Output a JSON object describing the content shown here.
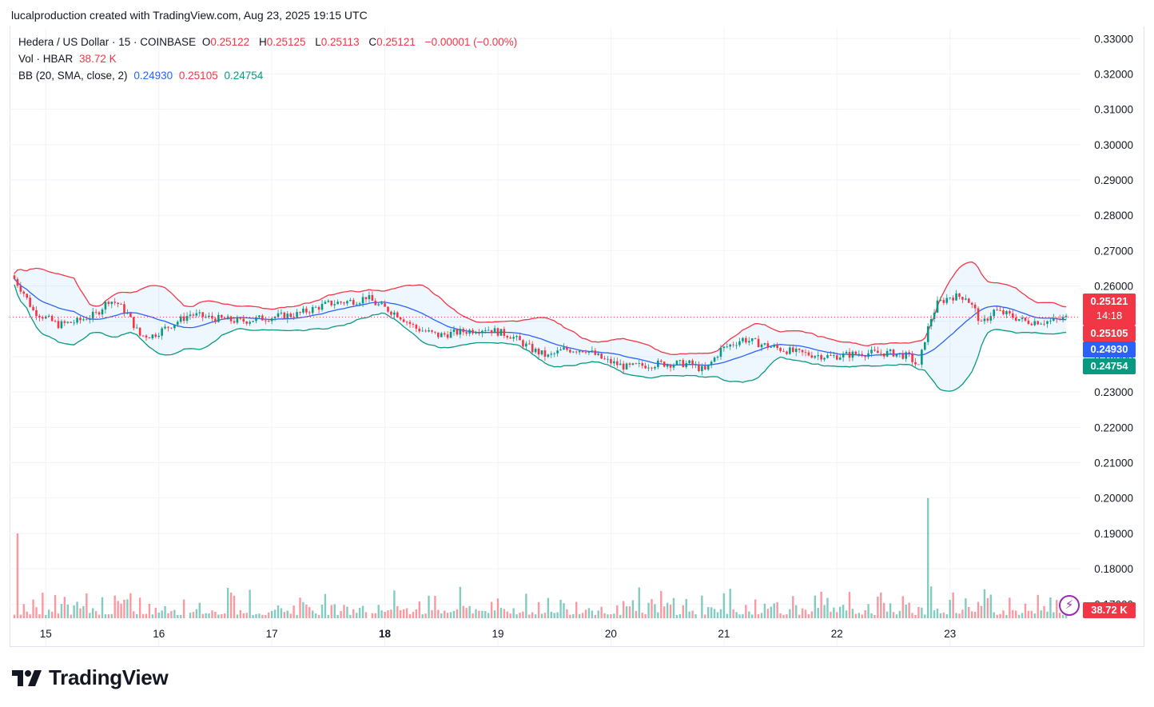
{
  "header": {
    "credit": "lucalproduction created with TradingView.com, Aug 23, 2025 19:15 UTC"
  },
  "legend": {
    "symbol": "Hedera / US Dollar · 15 · COINBASE",
    "o_label": "O",
    "o_value": "0.25122",
    "h_label": "H",
    "h_value": "0.25125",
    "l_label": "L",
    "l_value": "0.25113",
    "c_label": "C",
    "c_value": "0.25121",
    "change": "−0.00001 (−0.00%)",
    "vol_label": "Vol · HBAR",
    "vol_value": "38.72 K",
    "bb_label": "BB (20, SMA, close, 2)",
    "bb_basis": "0.24930",
    "bb_upper": "0.25105",
    "bb_lower": "0.24754"
  },
  "price_tags": {
    "last_price": "0.25121",
    "countdown": "14:18",
    "bb_upper": "0.25105",
    "bb_basis": "0.24930",
    "bb_lower": "0.24754",
    "volume": "38.72 K"
  },
  "brand": {
    "name": "TradingView"
  },
  "colors": {
    "up": "#089981",
    "down": "#f23645",
    "basis": "#2962ff",
    "upper": "#f23645",
    "lower": "#089981",
    "fill": "rgba(33,150,243,0.08)",
    "grid": "#f0f3fa"
  },
  "chart_data": {
    "type": "candlestick",
    "y_axis_labels": [
      "0.33000",
      "0.32000",
      "0.31000",
      "0.30000",
      "0.29000",
      "0.28000",
      "0.27000",
      "0.26000",
      "0.25000",
      "0.24000",
      "0.23000",
      "0.22000",
      "0.21000",
      "0.20000",
      "0.19000",
      "0.18000",
      "0.17000"
    ],
    "ylim": [
      0.166,
      0.333
    ],
    "x_axis_labels": [
      "15",
      "16",
      "17",
      "18",
      "19",
      "20",
      "21",
      "22",
      "23"
    ],
    "x_axis_bold": [
      "18"
    ],
    "price_path": [
      [
        0,
        0.262
      ],
      [
        3,
        0.258
      ],
      [
        6,
        0.253
      ],
      [
        10,
        0.251
      ],
      [
        14,
        0.249
      ],
      [
        20,
        0.25
      ],
      [
        26,
        0.252
      ],
      [
        30,
        0.256
      ],
      [
        33,
        0.255
      ],
      [
        36,
        0.252
      ],
      [
        40,
        0.246
      ],
      [
        44,
        0.246
      ],
      [
        50,
        0.249
      ],
      [
        56,
        0.252
      ],
      [
        62,
        0.251
      ],
      [
        72,
        0.25
      ],
      [
        80,
        0.251
      ],
      [
        90,
        0.252
      ],
      [
        100,
        0.255
      ],
      [
        110,
        0.256
      ],
      [
        112,
        0.257
      ],
      [
        115,
        0.255
      ],
      [
        122,
        0.252
      ],
      [
        128,
        0.248
      ],
      [
        135,
        0.246
      ],
      [
        142,
        0.247
      ],
      [
        150,
        0.248
      ],
      [
        158,
        0.246
      ],
      [
        165,
        0.242
      ],
      [
        170,
        0.24
      ],
      [
        175,
        0.242
      ],
      [
        182,
        0.242
      ],
      [
        188,
        0.239
      ],
      [
        195,
        0.237
      ],
      [
        205,
        0.238
      ],
      [
        215,
        0.238
      ],
      [
        220,
        0.236
      ],
      [
        225,
        0.242
      ],
      [
        232,
        0.245
      ],
      [
        240,
        0.243
      ],
      [
        250,
        0.241
      ],
      [
        260,
        0.24
      ],
      [
        270,
        0.241
      ],
      [
        280,
        0.241
      ],
      [
        285,
        0.24
      ],
      [
        288,
        0.237
      ],
      [
        290,
        0.245
      ],
      [
        292,
        0.251
      ],
      [
        294,
        0.255
      ],
      [
        298,
        0.257
      ],
      [
        303,
        0.257
      ],
      [
        306,
        0.253
      ],
      [
        308,
        0.249
      ],
      [
        312,
        0.253
      ],
      [
        316,
        0.252
      ],
      [
        322,
        0.25
      ],
      [
        330,
        0.25
      ],
      [
        335,
        0.251
      ]
    ],
    "volume_spikes": [
      [
        1,
        0.19
      ],
      [
        3,
        0.17
      ],
      [
        55,
        0.16
      ],
      [
        113,
        0.16
      ],
      [
        218,
        0.16
      ],
      [
        291,
        0.2
      ],
      [
        292,
        0.175
      ]
    ],
    "last_price": 0.25121,
    "bb": {
      "basis": 0.2493,
      "upper": 0.25105,
      "lower": 0.24754
    },
    "volume_last": "38.72 K"
  }
}
